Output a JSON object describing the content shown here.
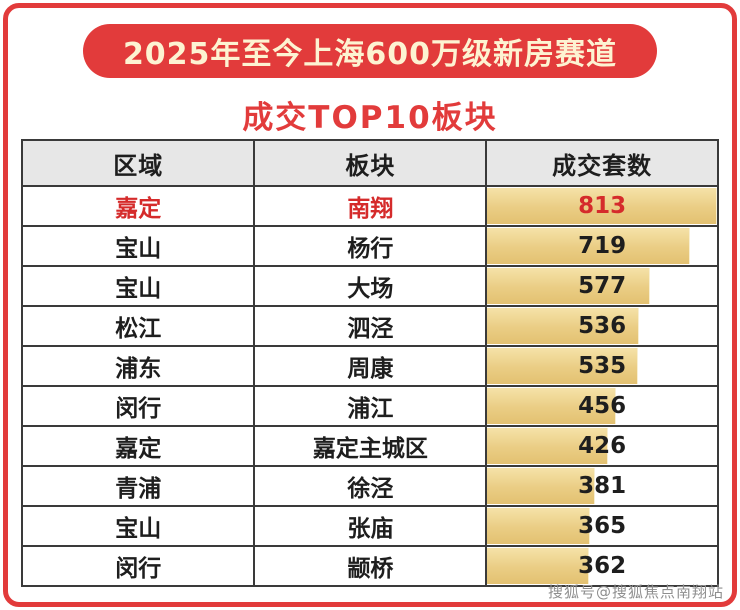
{
  "banner": {
    "title": "2025年至今上海600万级新房赛道"
  },
  "subtitle": "成交TOP10板块",
  "watermark": "搜狐号@搜狐焦点南翔站",
  "colors": {
    "accent_red": "#e23b3b",
    "banner_text": "#fdf3d2",
    "highlight_text": "#d52b2b",
    "header_bg": "#e7e7e7",
    "bar_gold": "#eacd84",
    "table_border": "#3a3a3a"
  },
  "chart_data": {
    "type": "table",
    "title": "2025年至今上海600万级新房赛道 成交TOP10板块",
    "columns": [
      "区域",
      "板块",
      "成交套数"
    ],
    "bar_max": 813,
    "rows": [
      {
        "region": "嘉定",
        "sector": "南翔",
        "count": 813,
        "highlight": true
      },
      {
        "region": "宝山",
        "sector": "杨行",
        "count": 719,
        "highlight": false
      },
      {
        "region": "宝山",
        "sector": "大场",
        "count": 577,
        "highlight": false
      },
      {
        "region": "松江",
        "sector": "泗泾",
        "count": 536,
        "highlight": false
      },
      {
        "region": "浦东",
        "sector": "周康",
        "count": 535,
        "highlight": false
      },
      {
        "region": "闵行",
        "sector": "浦江",
        "count": 456,
        "highlight": false
      },
      {
        "region": "嘉定",
        "sector": "嘉定主城区",
        "count": 426,
        "highlight": false
      },
      {
        "region": "青浦",
        "sector": "徐泾",
        "count": 381,
        "highlight": false
      },
      {
        "region": "宝山",
        "sector": "张庙",
        "count": 365,
        "highlight": false
      },
      {
        "region": "闵行",
        "sector": "颛桥",
        "count": 362,
        "highlight": false
      }
    ]
  }
}
